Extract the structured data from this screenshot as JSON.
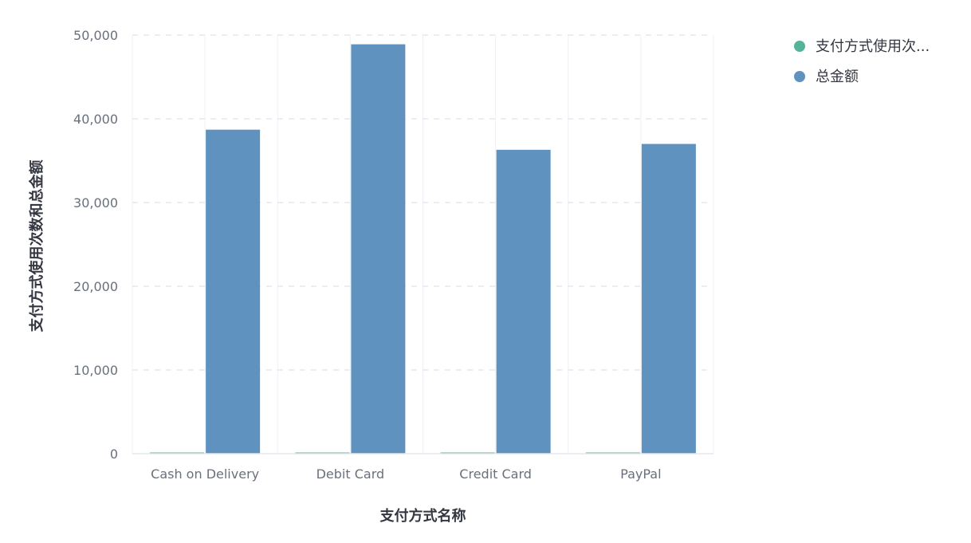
{
  "chart_data": {
    "type": "bar",
    "categories": [
      "Cash on Delivery",
      "Debit Card",
      "Credit Card",
      "PayPal"
    ],
    "series": [
      {
        "name": "支付方式使用次...",
        "color": "#54b399",
        "values": [
          125,
          125,
          125,
          125
        ]
      },
      {
        "name": "总金额",
        "color": "#6092c0",
        "values": [
          38700,
          48900,
          36300,
          37000
        ]
      }
    ],
    "xlabel": "支付方式名称",
    "ylabel": "支付方式使用次数和总金额",
    "ylim": [
      0,
      50000
    ],
    "yticks": [
      0,
      10000,
      20000,
      30000,
      40000,
      50000
    ],
    "ytick_labels": [
      "0",
      "10,000",
      "20,000",
      "30,000",
      "40,000",
      "50,000"
    ],
    "grid": true,
    "legend_position": "top-right"
  }
}
